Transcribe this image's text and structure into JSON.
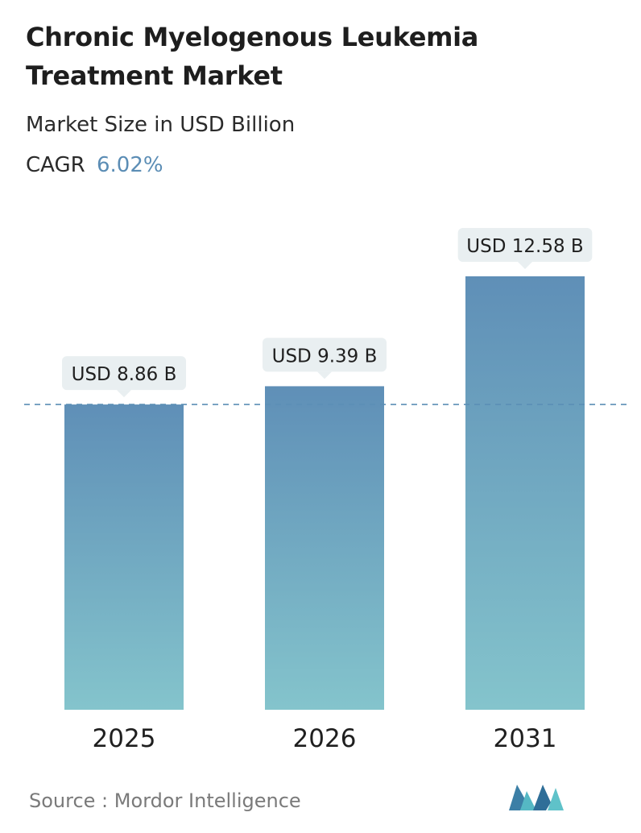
{
  "header": {
    "title": "Chronic Myelogenous Leukemia Treatment Market",
    "subtitle": "Market Size in USD Billion",
    "cagr_label": "CAGR",
    "cagr_value": "6.02%"
  },
  "chart_data": {
    "type": "bar",
    "categories": [
      "2025",
      "2026",
      "2031"
    ],
    "values": [
      8.86,
      9.39,
      12.58
    ],
    "value_labels": [
      "USD 8.86 B",
      "USD 9.39 B",
      "USD 12.58 B"
    ],
    "title": "Chronic Myelogenous Leukemia Treatment Market",
    "subtitle": "Market Size in USD Billion",
    "xlabel": "",
    "ylabel": "",
    "ylim": [
      0,
      12.58
    ],
    "grid": false,
    "legend": "none",
    "reference_line": {
      "value": 8.86,
      "style": "dashed"
    },
    "colors": {
      "bar_top": "#5f8fb7",
      "bar_bottom": "#84c4cc",
      "label_bg": "#e9eff1",
      "ref_line": "#5b8fb5"
    }
  },
  "footer": {
    "source_label": "Source :",
    "source_value": "Mordor Intelligence",
    "logo_icon": "mordor-intelligence-logo-icon"
  }
}
